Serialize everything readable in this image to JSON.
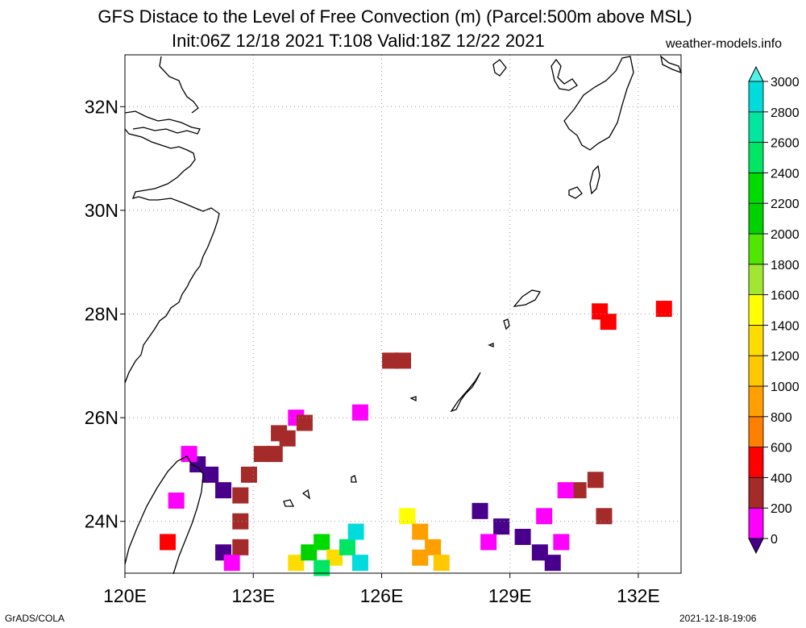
{
  "title": {
    "line1": "GFS Distace to the Level of Free Convection (m) (Parcel:500m above MSL)",
    "line2": "Init:06Z 12/18 2021 T:108 Valid:18Z 12/22 2021",
    "site": "weather-models.info"
  },
  "footer": {
    "left": "GrADS/COLA",
    "right": "2021-12-18-19:06"
  },
  "map": {
    "lon_range": [
      120,
      133
    ],
    "lat_range": [
      23,
      33
    ],
    "lon_ticks": [
      {
        "value": 120,
        "label": "120E"
      },
      {
        "value": 123,
        "label": "123E"
      },
      {
        "value": 126,
        "label": "126E"
      },
      {
        "value": 129,
        "label": "129E"
      },
      {
        "value": 132,
        "label": "132E"
      }
    ],
    "lat_ticks": [
      {
        "value": 24,
        "label": "24N"
      },
      {
        "value": 26,
        "label": "26N"
      },
      {
        "value": 28,
        "label": "28N"
      },
      {
        "value": 30,
        "label": "30N"
      },
      {
        "value": 32,
        "label": "32N"
      }
    ],
    "cells": [
      {
        "lon": 131.1,
        "lat": 28.05,
        "cls": "c500"
      },
      {
        "lon": 131.3,
        "lat": 27.85,
        "cls": "c500"
      },
      {
        "lon": 132.6,
        "lat": 28.1,
        "cls": "c500"
      },
      {
        "lon": 126.2,
        "lat": 27.1,
        "cls": "c300"
      },
      {
        "lon": 126.5,
        "lat": 27.1,
        "cls": "c300"
      },
      {
        "lon": 125.5,
        "lat": 26.1,
        "cls": "c100"
      },
      {
        "lon": 124.0,
        "lat": 26.0,
        "cls": "c100"
      },
      {
        "lon": 124.2,
        "lat": 25.9,
        "cls": "c300"
      },
      {
        "lon": 123.6,
        "lat": 25.7,
        "cls": "c300"
      },
      {
        "lon": 123.8,
        "lat": 25.6,
        "cls": "c300"
      },
      {
        "lon": 123.2,
        "lat": 25.3,
        "cls": "c300"
      },
      {
        "lon": 123.5,
        "lat": 25.3,
        "cls": "c300"
      },
      {
        "lon": 122.9,
        "lat": 24.9,
        "cls": "c300"
      },
      {
        "lon": 122.7,
        "lat": 24.5,
        "cls": "c300"
      },
      {
        "lon": 122.7,
        "lat": 24.0,
        "cls": "c300"
      },
      {
        "lon": 122.7,
        "lat": 23.5,
        "cls": "c300"
      },
      {
        "lon": 121.7,
        "lat": 25.1,
        "cls": "c0"
      },
      {
        "lon": 122.0,
        "lat": 24.9,
        "cls": "c0"
      },
      {
        "lon": 122.3,
        "lat": 24.6,
        "cls": "c0"
      },
      {
        "lon": 121.5,
        "lat": 25.3,
        "cls": "c100"
      },
      {
        "lon": 121.2,
        "lat": 24.4,
        "cls": "c100"
      },
      {
        "lon": 121.0,
        "lat": 23.6,
        "cls": "c500"
      },
      {
        "lon": 122.3,
        "lat": 23.4,
        "cls": "c0"
      },
      {
        "lon": 122.5,
        "lat": 23.2,
        "cls": "c100"
      },
      {
        "lon": 124.0,
        "lat": 23.2,
        "cls": "c1300"
      },
      {
        "lon": 124.3,
        "lat": 23.4,
        "cls": "c2100"
      },
      {
        "lon": 124.6,
        "lat": 23.6,
        "cls": "c2300"
      },
      {
        "lon": 124.9,
        "lat": 23.3,
        "cls": "c1300"
      },
      {
        "lon": 125.2,
        "lat": 23.5,
        "cls": "c2500"
      },
      {
        "lon": 125.4,
        "lat": 23.8,
        "cls": "c2900"
      },
      {
        "lon": 125.5,
        "lat": 23.2,
        "cls": "c2900"
      },
      {
        "lon": 124.6,
        "lat": 23.1,
        "cls": "c2500"
      },
      {
        "lon": 126.6,
        "lat": 24.1,
        "cls": "c1500"
      },
      {
        "lon": 126.9,
        "lat": 23.8,
        "cls": "c900"
      },
      {
        "lon": 127.2,
        "lat": 23.5,
        "cls": "c900"
      },
      {
        "lon": 127.4,
        "lat": 23.2,
        "cls": "c1100"
      },
      {
        "lon": 126.9,
        "lat": 23.3,
        "cls": "c900"
      },
      {
        "lon": 128.3,
        "lat": 24.2,
        "cls": "c0"
      },
      {
        "lon": 128.8,
        "lat": 23.9,
        "cls": "c0"
      },
      {
        "lon": 129.3,
        "lat": 23.7,
        "cls": "c0"
      },
      {
        "lon": 129.7,
        "lat": 23.4,
        "cls": "c0"
      },
      {
        "lon": 130.0,
        "lat": 23.2,
        "cls": "c0"
      },
      {
        "lon": 128.5,
        "lat": 23.6,
        "cls": "c100"
      },
      {
        "lon": 129.8,
        "lat": 24.1,
        "cls": "c100"
      },
      {
        "lon": 130.2,
        "lat": 23.6,
        "cls": "c100"
      },
      {
        "lon": 130.6,
        "lat": 24.6,
        "cls": "c300"
      },
      {
        "lon": 131.0,
        "lat": 24.8,
        "cls": "c300"
      },
      {
        "lon": 131.2,
        "lat": 24.1,
        "cls": "c300"
      },
      {
        "lon": 130.3,
        "lat": 24.6,
        "cls": "c100"
      }
    ]
  },
  "legend": {
    "colors": [
      "#48008c",
      "#ff00ff",
      "#a52a2a",
      "#ff0000",
      "#ff7f00",
      "#ffa000",
      "#ffc800",
      "#ffdc00",
      "#ffff00",
      "#a0e632",
      "#50e600",
      "#00d200",
      "#00dc00",
      "#00e664",
      "#00e6a0",
      "#00dcdc"
    ],
    "max_arrow_color": "#4ef2e6",
    "min_arrow_color": "#48008c",
    "labels": [
      "0",
      "200",
      "400",
      "600",
      "800",
      "1000",
      "1200",
      "1400",
      "1600",
      "1800",
      "2000",
      "2200",
      "2400",
      "2600",
      "2800",
      "3000"
    ]
  }
}
